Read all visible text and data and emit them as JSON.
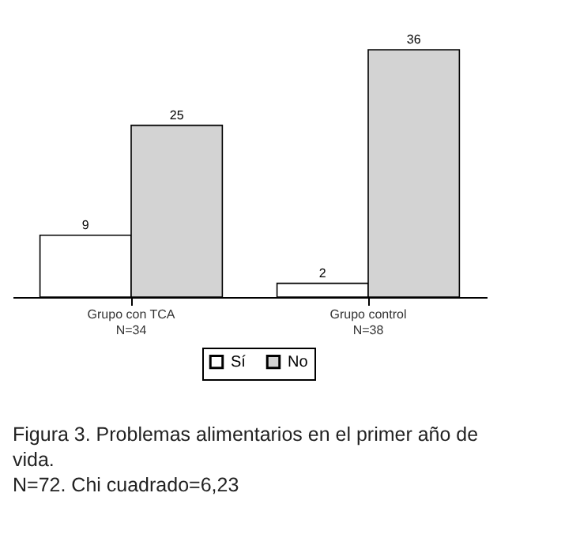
{
  "chart_data": {
    "type": "bar",
    "categories": [
      "Grupo con TCA\nN=34",
      "Grupo control\nN=38"
    ],
    "series": [
      {
        "name": "Sí",
        "color": "#ffffff",
        "values": [
          9,
          2
        ]
      },
      {
        "name": "No",
        "color": "#d3d3d3",
        "values": [
          25,
          36
        ]
      }
    ],
    "data_labels": true,
    "legend": "bottom",
    "grid": false,
    "annotations": [
      "Figura 3. Problemas alimentarios en el primer año de vida.",
      "N=72. Chi cuadrado=6,23"
    ]
  }
}
